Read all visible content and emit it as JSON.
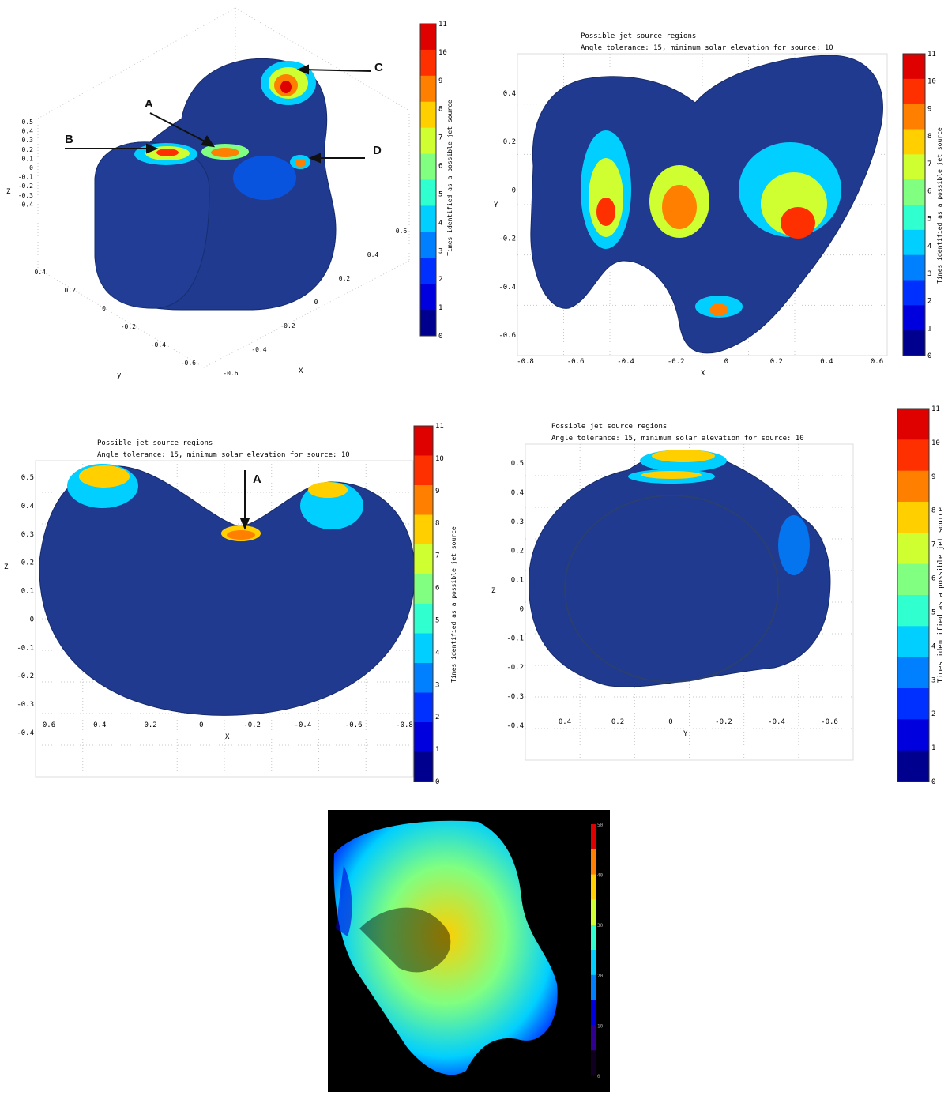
{
  "colors": {
    "body": "#1f3a8f",
    "colormap": [
      "#00008f",
      "#0000df",
      "#0030ff",
      "#0080ff",
      "#00cfff",
      "#30ffcf",
      "#80ff80",
      "#cfff30",
      "#ffcf00",
      "#ff8000",
      "#ff3000",
      "#df0000"
    ],
    "grid": "#c8c8c8",
    "mesh": "#3a4f7a"
  },
  "chart_data": [
    {
      "type": "heatmap",
      "title": "",
      "subtitle": "",
      "xlabel": "X",
      "ylabel": "y",
      "zlabel": "Z",
      "xticks": [
        "-0.6",
        "-0.4",
        "-0.2",
        "0",
        "0.2",
        "0.4",
        "0.6"
      ],
      "yticks": [
        "-0.6",
        "-0.4",
        "-0.2",
        "0",
        "0.2",
        "0.4"
      ],
      "zticks": [
        "0.5",
        "0.4",
        "0.3",
        "0.2",
        "0.1",
        "0",
        "-0.1",
        "-0.2",
        "-0.3",
        "-0.4"
      ],
      "colorbar_label": "Times identified as a possible jet source",
      "colorbar_ticks": [
        "11",
        "10",
        "9",
        "8",
        "7",
        "6",
        "5",
        "4",
        "3",
        "2",
        "1",
        "0"
      ],
      "annotations": [
        "A",
        "B",
        "C",
        "D"
      ]
    },
    {
      "type": "heatmap",
      "title": "Possible jet source regions",
      "subtitle": "Angle tolerance: 15, minimum solar elevation for source: 10",
      "xlabel": "X",
      "ylabel": "Y",
      "xticks": [
        "-0.8",
        "-0.6",
        "-0.4",
        "-0.2",
        "0",
        "0.2",
        "0.4",
        "0.6"
      ],
      "yticks": [
        "0.4",
        "0.2",
        "0",
        "-0.2",
        "-0.4",
        "-0.6"
      ],
      "colorbar_label": "Times identified as a possible jet source",
      "colorbar_ticks": [
        "11",
        "10",
        "9",
        "8",
        "7",
        "6",
        "5",
        "4",
        "3",
        "2",
        "1",
        "0"
      ]
    },
    {
      "type": "heatmap",
      "title": "Possible jet source regions",
      "subtitle": "Angle tolerance: 15, minimum solar elevation for source: 10",
      "xlabel": "X",
      "ylabel": "Z",
      "xticks": [
        "0.6",
        "0.4",
        "0.2",
        "0",
        "-0.2",
        "-0.4",
        "-0.6",
        "-0.8"
      ],
      "yticks": [
        "0.5",
        "0.4",
        "0.3",
        "0.2",
        "0.1",
        "0",
        "-0.1",
        "-0.2",
        "-0.3",
        "-0.4"
      ],
      "colorbar_label": "Times identified as a possible jet source",
      "colorbar_ticks": [
        "11",
        "10",
        "9",
        "8",
        "7",
        "6",
        "5",
        "4",
        "3",
        "2",
        "1",
        "0"
      ],
      "annotations": [
        "A"
      ]
    },
    {
      "type": "heatmap",
      "title": "Possible jet source regions",
      "subtitle": "Angle tolerance: 15, minimum solar elevation for source: 10",
      "xlabel": "Y",
      "ylabel": "Z",
      "xticks": [
        "0.4",
        "0.2",
        "0",
        "-0.2",
        "-0.4",
        "-0.6"
      ],
      "yticks": [
        "0.5",
        "0.4",
        "0.3",
        "0.2",
        "0.1",
        "0",
        "-0.1",
        "-0.2",
        "-0.3",
        "-0.4"
      ],
      "colorbar_label": "Times identified as a possible jet source",
      "colorbar_ticks": [
        "11",
        "10",
        "9",
        "8",
        "7",
        "6",
        "5",
        "4",
        "3",
        "2",
        "1",
        "0"
      ]
    },
    {
      "type": "heatmap",
      "title": "",
      "colorbar_ticks": [
        "50",
        "40",
        "30",
        "20",
        "10",
        "0"
      ]
    }
  ]
}
